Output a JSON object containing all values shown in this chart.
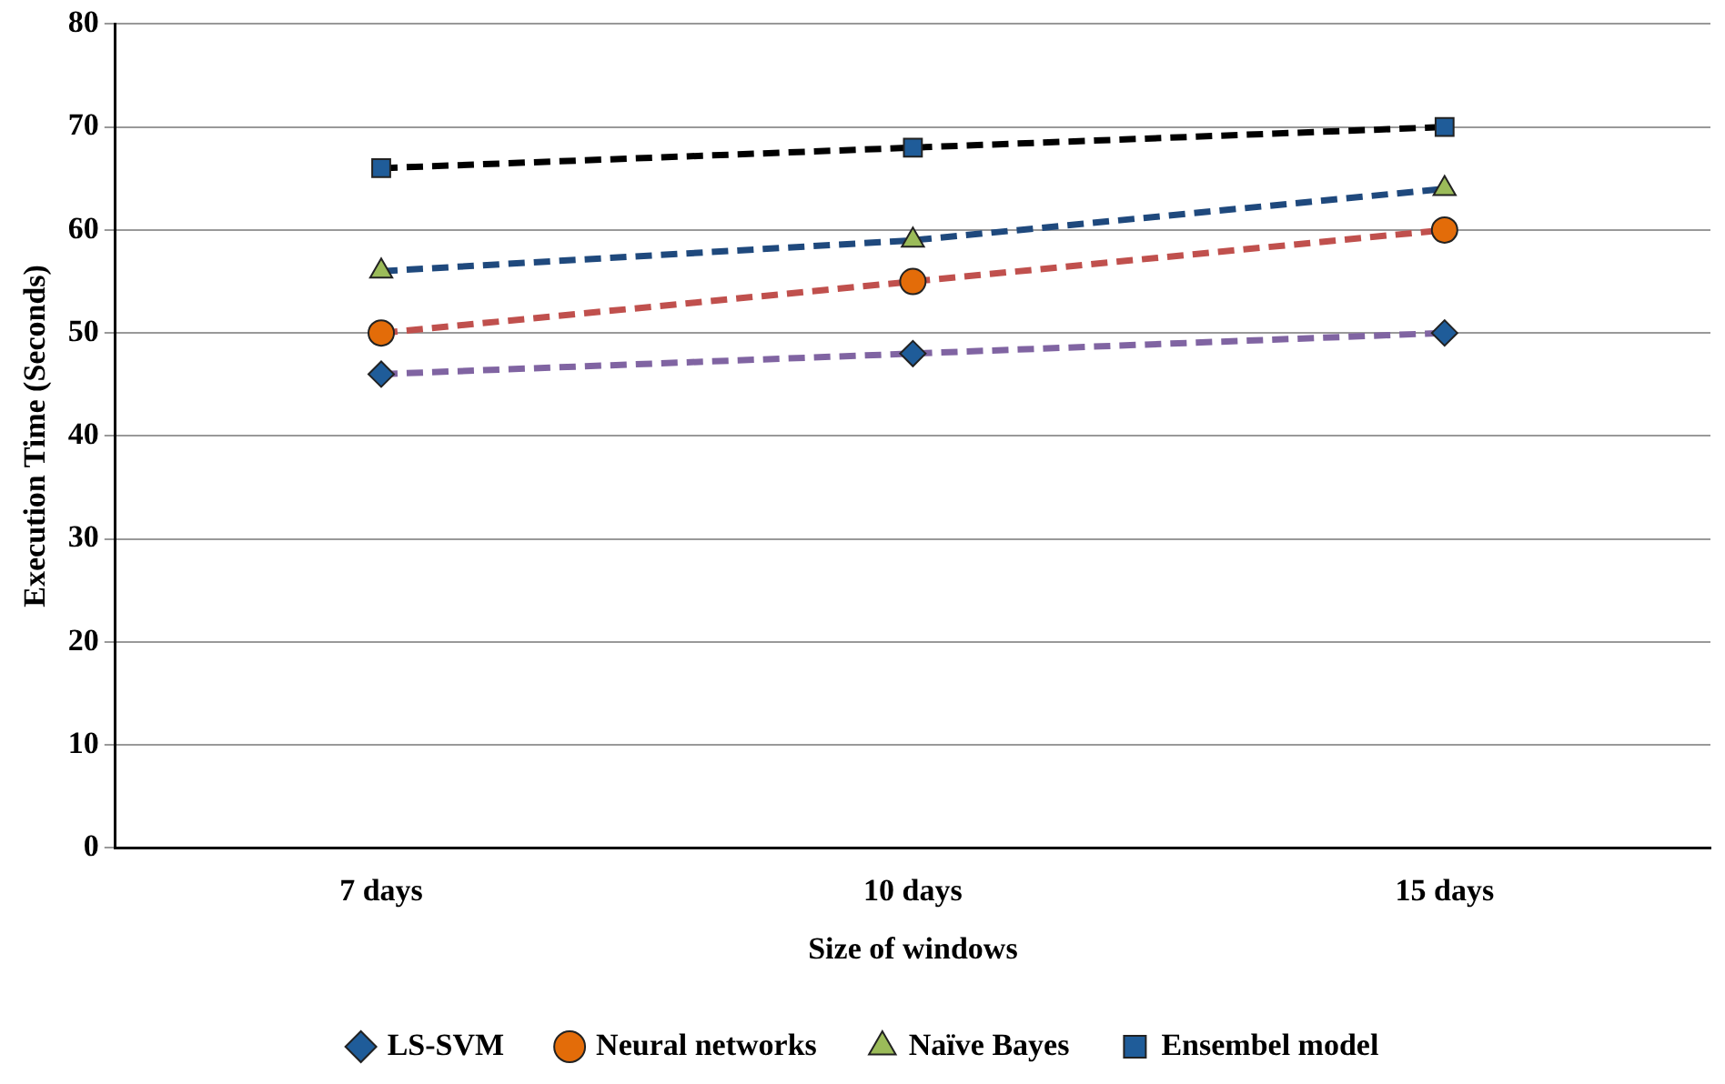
{
  "chart_data": {
    "type": "line",
    "xlabel": "Size of windows",
    "ylabel": "Execution Time (Seconds)",
    "categories": [
      "7 days",
      "10 days",
      "15 days"
    ],
    "ylim": [
      0,
      80
    ],
    "yticks": [
      0,
      10,
      20,
      30,
      40,
      50,
      60,
      70,
      80
    ],
    "grid": "y",
    "legend": "bottom",
    "line_style": "dashed",
    "series": [
      {
        "name": "LS-SVM",
        "color": "#8064a2",
        "marker": "diamond",
        "colors": [
          "#1f5c99",
          "#1f5c99",
          "#1f5c99"
        ],
        "values": [
          46,
          48,
          50
        ]
      },
      {
        "name": "Neural networks",
        "color": "#c0504d",
        "marker": "circle",
        "colors": [
          "#e36c09",
          "#e36c09",
          "#e36c09"
        ],
        "values": [
          50,
          55,
          60
        ]
      },
      {
        "name": "Naïve Bayes",
        "color": "#1f497d",
        "marker": "triangle",
        "colors": [
          "#9bbb59",
          "#9bbb59",
          "#9bbb59"
        ],
        "values": [
          56,
          59,
          64
        ]
      },
      {
        "name": "Ensembel model",
        "color": "#000000",
        "marker": "square",
        "colors": [
          "#1f5c99",
          "#1f5c99",
          "#1f5c99"
        ],
        "values": [
          66,
          68,
          70
        ]
      }
    ]
  }
}
